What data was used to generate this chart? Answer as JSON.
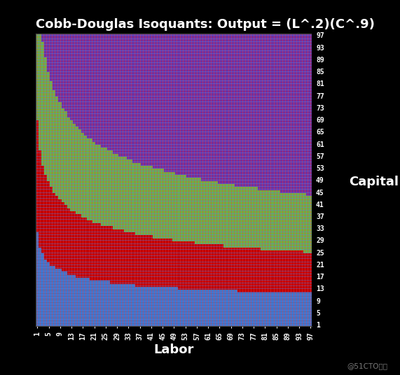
{
  "title": "Cobb-Douglas Isoquants: Output = (L^.2)(C^.9)",
  "xlabel": "Labor",
  "ylabel": "Capital",
  "alpha_L": 0.2,
  "alpha_C": 0.9,
  "L_min": 1,
  "L_max": 97,
  "C_min": 1,
  "C_max": 97,
  "xtick_step": 4,
  "ytick_step": 4,
  "background_color": "#000000",
  "plot_bg_color": "#000000",
  "title_color": "#ffffff",
  "tick_color": "#ffffff",
  "label_color": "#ffffff",
  "watermark": "@51CTO博客",
  "threshold1": 22,
  "threshold2": 45,
  "threshold3": 75,
  "color_low": "#4472C4",
  "color_mid": "#C00000",
  "color_high": "#70AD47",
  "color_top": "#7030A0",
  "grid_linewidth": 0.4,
  "title_fontsize": 13,
  "axis_label_fontsize": 13,
  "tick_fontsize": 7
}
